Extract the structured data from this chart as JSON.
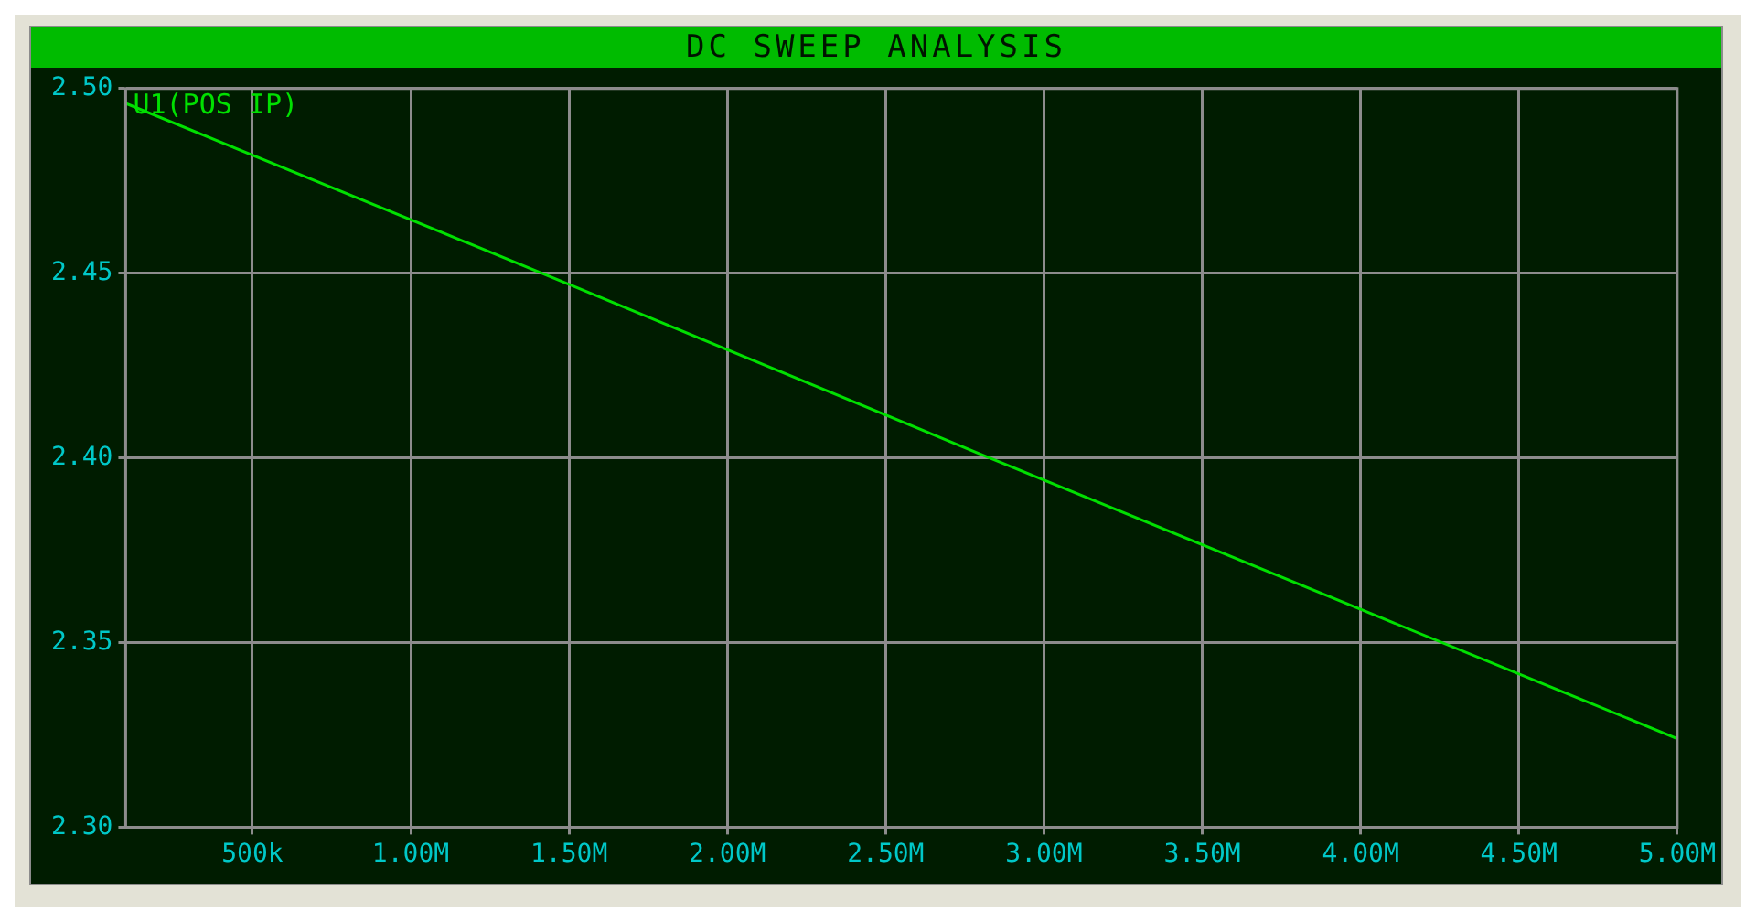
{
  "chart_data": {
    "type": "line",
    "title": "DC SWEEP ANALYSIS",
    "x": [
      100000,
      1500000,
      2800000,
      4000000,
      5000000
    ],
    "series": [
      {
        "name": "U1(POS IP)",
        "color": "#00e000",
        "values": [
          2.496,
          2.447,
          2.401,
          2.359,
          2.324
        ]
      }
    ],
    "xlim": [
      100000,
      5000000
    ],
    "xticks": [
      {
        "value": 500000,
        "label": "500k"
      },
      {
        "value": 1000000,
        "label": "1.00M"
      },
      {
        "value": 1500000,
        "label": "1.50M"
      },
      {
        "value": 2000000,
        "label": "2.00M"
      },
      {
        "value": 2500000,
        "label": "2.50M"
      },
      {
        "value": 3000000,
        "label": "3.00M"
      },
      {
        "value": 3500000,
        "label": "3.50M"
      },
      {
        "value": 4000000,
        "label": "4.00M"
      },
      {
        "value": 4500000,
        "label": "4.50M"
      },
      {
        "value": 5000000,
        "label": "5.00M"
      }
    ],
    "ylim": [
      2.3,
      2.5
    ],
    "yticks": [
      {
        "value": 2.3,
        "label": "2.30"
      },
      {
        "value": 2.35,
        "label": "2.35"
      },
      {
        "value": 2.4,
        "label": "2.40"
      },
      {
        "value": 2.45,
        "label": "2.45"
      },
      {
        "value": 2.5,
        "label": "2.50"
      }
    ],
    "grid": true,
    "marker": "none",
    "line_style": "solid",
    "legend": false
  }
}
